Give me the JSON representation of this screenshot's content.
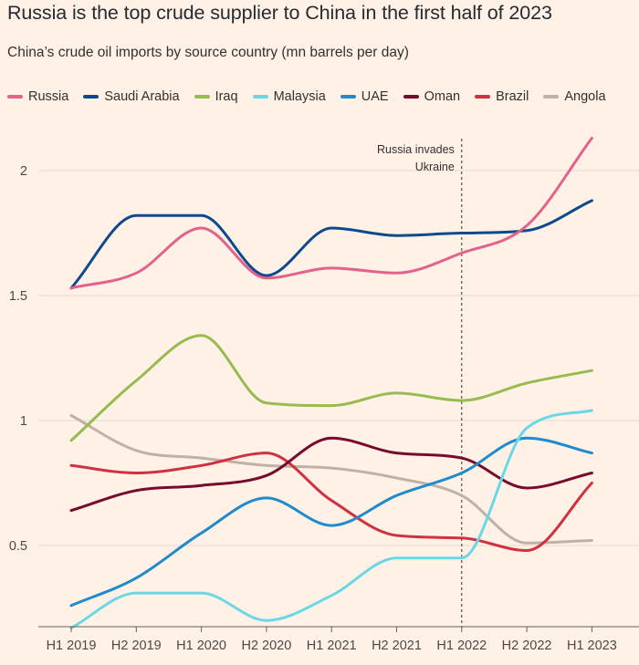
{
  "chart_data": {
    "type": "line",
    "title": "Russia is the top crude supplier to China in the first half of 2023",
    "subtitle": "China’s crude oil imports by source country (mn barrels per day)",
    "categories": [
      "H1 2019",
      "H2 2019",
      "H1 2020",
      "H2 2020",
      "H1 2021",
      "H2 2021",
      "H1 2022",
      "H2 2022",
      "H1 2023"
    ],
    "ylim": [
      0.17,
      2.3
    ],
    "yticks": [
      0.5,
      1,
      1.5,
      2
    ],
    "ytick_labels": [
      "0.5",
      "1",
      "1.5",
      "2"
    ],
    "grid": true,
    "legend_position": "top",
    "series": [
      {
        "name": "Russia",
        "color": "#e3628c",
        "values": [
          1.53,
          1.59,
          1.77,
          1.57,
          1.61,
          1.59,
          1.67,
          1.78,
          2.13
        ]
      },
      {
        "name": "Saudi Arabia",
        "color": "#0d4a8b",
        "values": [
          1.53,
          1.82,
          1.82,
          1.58,
          1.77,
          1.74,
          1.75,
          1.76,
          1.88
        ]
      },
      {
        "name": "Iraq",
        "color": "#96bb4f",
        "values": [
          0.92,
          1.16,
          1.34,
          1.07,
          1.06,
          1.11,
          1.08,
          1.15,
          1.2
        ]
      },
      {
        "name": "Malaysia",
        "color": "#6ad7e6",
        "values": [
          0.17,
          0.31,
          0.31,
          0.2,
          0.3,
          0.45,
          0.45,
          0.97,
          1.04
        ]
      },
      {
        "name": "UAE",
        "color": "#1f8bcc",
        "values": [
          0.26,
          0.37,
          0.55,
          0.69,
          0.58,
          0.7,
          0.79,
          0.93,
          0.87
        ]
      },
      {
        "name": "Oman",
        "color": "#770b2d",
        "values": [
          0.64,
          0.72,
          0.74,
          0.78,
          0.93,
          0.87,
          0.85,
          0.73,
          0.79
        ]
      },
      {
        "name": "Brazil",
        "color": "#cf3141",
        "values": [
          0.82,
          0.79,
          0.82,
          0.87,
          0.68,
          0.54,
          0.53,
          0.48,
          0.75
        ]
      },
      {
        "name": "Angola",
        "color": "#bfb1a5",
        "values": [
          1.02,
          0.88,
          0.85,
          0.82,
          0.81,
          0.77,
          0.7,
          0.51,
          0.52
        ]
      }
    ],
    "annotation": {
      "text_line1": "Russia invades",
      "text_line2": "Ukraine",
      "at_category": "H1 2022"
    }
  }
}
